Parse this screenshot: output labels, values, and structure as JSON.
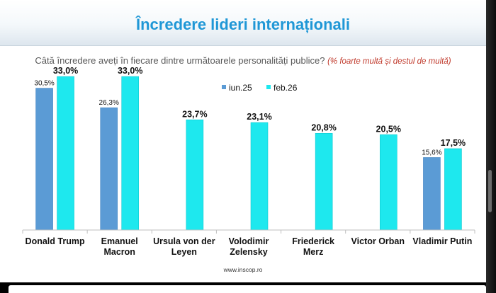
{
  "slide": {
    "title": "Încredere lideri internaționali",
    "question": "Câtă încredere aveți în fiecare dintre următoarele personalități publice?",
    "question_note": "(% foarte multă și destul de multă)",
    "footer": "www.inscop.ro"
  },
  "chart_data": {
    "type": "bar",
    "title": "Încredere lideri internaționali",
    "xlabel": "",
    "ylabel": "",
    "ylim": [
      0,
      35
    ],
    "categories": [
      [
        "Donald Trump"
      ],
      [
        "Emanuel",
        "Macron"
      ],
      [
        "Ursula von der",
        "Leyen"
      ],
      [
        "Volodimir",
        "Zelensky"
      ],
      [
        "Friederick",
        "Merz"
      ],
      [
        "Victor Orban"
      ],
      [
        "Vladimir Putin"
      ]
    ],
    "series": [
      {
        "name": "iun.25",
        "color": "#5b9bd5",
        "values": [
          30.5,
          26.3,
          null,
          null,
          null,
          null,
          15.6
        ],
        "labels": [
          "30,5%",
          "26,3%",
          "",
          "",
          "",
          "",
          "15,6%"
        ]
      },
      {
        "name": "feb.26",
        "color": "#1ee8ee",
        "values": [
          33.0,
          33.0,
          23.7,
          23.1,
          20.8,
          20.5,
          17.5
        ],
        "labels": [
          "33,0%",
          "33,0%",
          "23,7%",
          "23,1%",
          "20,8%",
          "20,5%",
          "17,5%"
        ]
      }
    ],
    "legend": "top-center",
    "grid": false
  }
}
